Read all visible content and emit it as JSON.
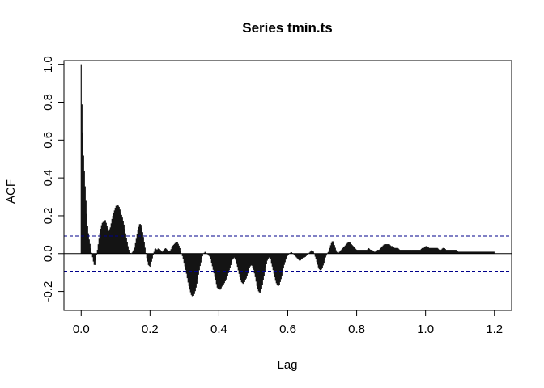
{
  "chart_data": {
    "type": "bar",
    "title": "Series  tmin.ts",
    "xlabel": "Lag",
    "ylabel": "ACF",
    "xlim": [
      -0.05,
      1.25
    ],
    "ylim": [
      -0.3,
      1.02
    ],
    "x_ticks": [
      "0.0",
      "0.2",
      "0.4",
      "0.6",
      "0.8",
      "1.0",
      "1.2"
    ],
    "x_tick_values": [
      0,
      0.2,
      0.4,
      0.6,
      0.8,
      1.0,
      1.2
    ],
    "y_ticks": [
      "-0.2",
      "0.0",
      "0.2",
      "0.4",
      "0.6",
      "0.8",
      "1.0"
    ],
    "y_tick_values": [
      -0.2,
      0,
      0.2,
      0.4,
      0.6,
      0.8,
      1.0
    ],
    "confidence_bounds": [
      0.093,
      -0.093
    ],
    "lag_range": [
      0,
      1.2
    ],
    "envelope": [
      [
        0.0,
        1.0
      ],
      [
        0.003,
        0.73
      ],
      [
        0.007,
        0.52
      ],
      [
        0.011,
        0.38
      ],
      [
        0.015,
        0.25
      ],
      [
        0.019,
        0.14
      ],
      [
        0.023,
        0.08
      ],
      [
        0.027,
        0.04
      ],
      [
        0.031,
        0.0
      ],
      [
        0.035,
        -0.04
      ],
      [
        0.039,
        -0.07
      ],
      [
        0.043,
        -0.03
      ],
      [
        0.047,
        0.02
      ],
      [
        0.051,
        0.07
      ],
      [
        0.055,
        0.12
      ],
      [
        0.06,
        0.16
      ],
      [
        0.065,
        0.17
      ],
      [
        0.07,
        0.18
      ],
      [
        0.075,
        0.15
      ],
      [
        0.08,
        0.12
      ],
      [
        0.085,
        0.14
      ],
      [
        0.09,
        0.19
      ],
      [
        0.095,
        0.22
      ],
      [
        0.1,
        0.25
      ],
      [
        0.105,
        0.26
      ],
      [
        0.11,
        0.25
      ],
      [
        0.115,
        0.22
      ],
      [
        0.12,
        0.19
      ],
      [
        0.125,
        0.15
      ],
      [
        0.13,
        0.1
      ],
      [
        0.135,
        0.05
      ],
      [
        0.14,
        0.01
      ],
      [
        0.145,
        0.0
      ],
      [
        0.15,
        0.01
      ],
      [
        0.155,
        0.03
      ],
      [
        0.16,
        0.08
      ],
      [
        0.165,
        0.13
      ],
      [
        0.17,
        0.16
      ],
      [
        0.175,
        0.15
      ],
      [
        0.18,
        0.1
      ],
      [
        0.185,
        0.04
      ],
      [
        0.19,
        -0.02
      ],
      [
        0.195,
        -0.06
      ],
      [
        0.2,
        -0.07
      ],
      [
        0.205,
        -0.04
      ],
      [
        0.21,
        0.0
      ],
      [
        0.215,
        0.03
      ],
      [
        0.22,
        0.02
      ],
      [
        0.225,
        0.03
      ],
      [
        0.23,
        0.02
      ],
      [
        0.235,
        0.01
      ],
      [
        0.24,
        0.02
      ],
      [
        0.245,
        0.03
      ],
      [
        0.25,
        0.02
      ],
      [
        0.255,
        0.01
      ],
      [
        0.26,
        0.02
      ],
      [
        0.265,
        0.04
      ],
      [
        0.27,
        0.05
      ],
      [
        0.275,
        0.06
      ],
      [
        0.28,
        0.06
      ],
      [
        0.285,
        0.04
      ],
      [
        0.29,
        0.01
      ],
      [
        0.295,
        -0.02
      ],
      [
        0.3,
        -0.06
      ],
      [
        0.305,
        -0.1
      ],
      [
        0.31,
        -0.15
      ],
      [
        0.315,
        -0.19
      ],
      [
        0.32,
        -0.22
      ],
      [
        0.325,
        -0.23
      ],
      [
        0.33,
        -0.21
      ],
      [
        0.335,
        -0.17
      ],
      [
        0.34,
        -0.12
      ],
      [
        0.345,
        -0.07
      ],
      [
        0.35,
        -0.03
      ],
      [
        0.355,
        0.0
      ],
      [
        0.36,
        0.01
      ],
      [
        0.365,
        0.0
      ],
      [
        0.37,
        -0.01
      ],
      [
        0.375,
        -0.02
      ],
      [
        0.38,
        -0.06
      ],
      [
        0.385,
        -0.1
      ],
      [
        0.39,
        -0.14
      ],
      [
        0.395,
        -0.18
      ],
      [
        0.4,
        -0.19
      ],
      [
        0.405,
        -0.19
      ],
      [
        0.41,
        -0.17
      ],
      [
        0.415,
        -0.16
      ],
      [
        0.42,
        -0.14
      ],
      [
        0.425,
        -0.12
      ],
      [
        0.43,
        -0.09
      ],
      [
        0.435,
        -0.06
      ],
      [
        0.44,
        -0.03
      ],
      [
        0.445,
        -0.02
      ],
      [
        0.45,
        -0.04
      ],
      [
        0.455,
        -0.08
      ],
      [
        0.46,
        -0.12
      ],
      [
        0.465,
        -0.15
      ],
      [
        0.47,
        -0.16
      ],
      [
        0.475,
        -0.15
      ],
      [
        0.48,
        -0.13
      ],
      [
        0.485,
        -0.1
      ],
      [
        0.49,
        -0.07
      ],
      [
        0.495,
        -0.06
      ],
      [
        0.5,
        -0.08
      ],
      [
        0.505,
        -0.12
      ],
      [
        0.51,
        -0.17
      ],
      [
        0.515,
        -0.2
      ],
      [
        0.52,
        -0.21
      ],
      [
        0.525,
        -0.18
      ],
      [
        0.53,
        -0.13
      ],
      [
        0.535,
        -0.08
      ],
      [
        0.54,
        -0.04
      ],
      [
        0.545,
        -0.02
      ],
      [
        0.55,
        -0.03
      ],
      [
        0.555,
        -0.07
      ],
      [
        0.56,
        -0.11
      ],
      [
        0.565,
        -0.15
      ],
      [
        0.57,
        -0.17
      ],
      [
        0.575,
        -0.17
      ],
      [
        0.58,
        -0.14
      ],
      [
        0.585,
        -0.1
      ],
      [
        0.59,
        -0.06
      ],
      [
        0.595,
        -0.03
      ],
      [
        0.6,
        -0.01
      ],
      [
        0.605,
        0.0
      ],
      [
        0.61,
        0.01
      ],
      [
        0.615,
        0.0
      ],
      [
        0.62,
        -0.01
      ],
      [
        0.625,
        -0.02
      ],
      [
        0.63,
        -0.03
      ],
      [
        0.635,
        -0.04
      ],
      [
        0.64,
        -0.03
      ],
      [
        0.645,
        -0.02
      ],
      [
        0.65,
        -0.02
      ],
      [
        0.655,
        -0.01
      ],
      [
        0.66,
        0.0
      ],
      [
        0.665,
        0.01
      ],
      [
        0.67,
        0.02
      ],
      [
        0.675,
        0.01
      ],
      [
        0.68,
        -0.02
      ],
      [
        0.685,
        -0.05
      ],
      [
        0.69,
        -0.08
      ],
      [
        0.695,
        -0.09
      ],
      [
        0.7,
        -0.08
      ],
      [
        0.705,
        -0.05
      ],
      [
        0.71,
        -0.02
      ],
      [
        0.715,
        0.0
      ],
      [
        0.72,
        0.02
      ],
      [
        0.725,
        0.05
      ],
      [
        0.73,
        0.07
      ],
      [
        0.735,
        0.05
      ],
      [
        0.74,
        0.02
      ],
      [
        0.745,
        0.0
      ],
      [
        0.75,
        0.01
      ],
      [
        0.755,
        0.02
      ],
      [
        0.76,
        0.03
      ],
      [
        0.765,
        0.04
      ],
      [
        0.77,
        0.05
      ],
      [
        0.775,
        0.06
      ],
      [
        0.78,
        0.06
      ],
      [
        0.785,
        0.05
      ],
      [
        0.79,
        0.04
      ],
      [
        0.795,
        0.03
      ],
      [
        0.8,
        0.02
      ],
      [
        0.805,
        0.02
      ],
      [
        0.81,
        0.02
      ],
      [
        0.815,
        0.02
      ],
      [
        0.82,
        0.02
      ],
      [
        0.825,
        0.02
      ],
      [
        0.83,
        0.02
      ],
      [
        0.835,
        0.03
      ],
      [
        0.84,
        0.02
      ],
      [
        0.845,
        0.02
      ],
      [
        0.85,
        0.01
      ],
      [
        0.855,
        0.01
      ],
      [
        0.86,
        0.02
      ],
      [
        0.865,
        0.02
      ],
      [
        0.87,
        0.03
      ],
      [
        0.875,
        0.04
      ],
      [
        0.88,
        0.05
      ],
      [
        0.885,
        0.05
      ],
      [
        0.89,
        0.05
      ],
      [
        0.895,
        0.05
      ],
      [
        0.9,
        0.04
      ],
      [
        0.905,
        0.04
      ],
      [
        0.91,
        0.03
      ],
      [
        0.915,
        0.03
      ],
      [
        0.92,
        0.03
      ],
      [
        0.925,
        0.02
      ],
      [
        0.93,
        0.02
      ],
      [
        0.935,
        0.02
      ],
      [
        0.94,
        0.02
      ],
      [
        0.945,
        0.02
      ],
      [
        0.95,
        0.02
      ],
      [
        0.955,
        0.02
      ],
      [
        0.96,
        0.02
      ],
      [
        0.965,
        0.02
      ],
      [
        0.97,
        0.02
      ],
      [
        0.975,
        0.02
      ],
      [
        0.98,
        0.02
      ],
      [
        0.985,
        0.02
      ],
      [
        0.99,
        0.03
      ],
      [
        0.995,
        0.03
      ],
      [
        1.0,
        0.04
      ],
      [
        1.005,
        0.04
      ],
      [
        1.01,
        0.03
      ],
      [
        1.015,
        0.03
      ],
      [
        1.02,
        0.03
      ],
      [
        1.025,
        0.03
      ],
      [
        1.03,
        0.03
      ],
      [
        1.035,
        0.03
      ],
      [
        1.04,
        0.02
      ],
      [
        1.045,
        0.02
      ],
      [
        1.05,
        0.03
      ],
      [
        1.055,
        0.03
      ],
      [
        1.06,
        0.02
      ],
      [
        1.065,
        0.02
      ],
      [
        1.07,
        0.02
      ],
      [
        1.075,
        0.02
      ],
      [
        1.08,
        0.02
      ],
      [
        1.085,
        0.02
      ],
      [
        1.09,
        0.02
      ],
      [
        1.095,
        0.01
      ],
      [
        1.1,
        0.01
      ],
      [
        1.105,
        0.01
      ],
      [
        1.11,
        0.01
      ],
      [
        1.115,
        0.01
      ],
      [
        1.12,
        0.01
      ],
      [
        1.125,
        0.01
      ],
      [
        1.13,
        0.01
      ],
      [
        1.135,
        0.01
      ],
      [
        1.14,
        0.01
      ],
      [
        1.145,
        0.01
      ],
      [
        1.15,
        0.01
      ],
      [
        1.155,
        0.01
      ],
      [
        1.16,
        0.01
      ],
      [
        1.165,
        0.01
      ],
      [
        1.17,
        0.01
      ],
      [
        1.175,
        0.01
      ],
      [
        1.18,
        0.01
      ],
      [
        1.185,
        0.01
      ],
      [
        1.19,
        0.01
      ],
      [
        1.195,
        0.01
      ],
      [
        1.2,
        0.01
      ]
    ]
  }
}
